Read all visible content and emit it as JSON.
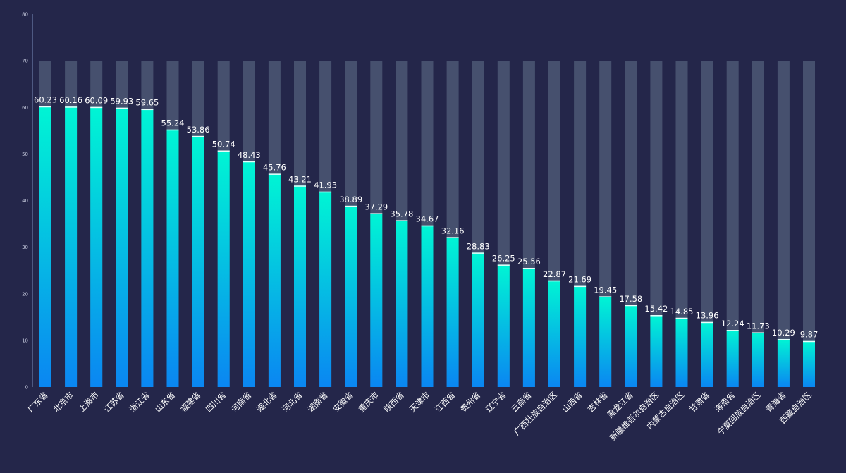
{
  "chart_data": {
    "type": "bar",
    "title": "",
    "xlabel": "",
    "ylabel": "",
    "ylim": [
      0,
      80
    ],
    "yticks": [
      0,
      10,
      20,
      30,
      40,
      50,
      60,
      70,
      80
    ],
    "background_max": 70,
    "grid": false,
    "categories": [
      "广东省",
      "北京市",
      "上海市",
      "江苏省",
      "浙江省",
      "山东省",
      "福建省",
      "四川省",
      "河南省",
      "湖北省",
      "河北省",
      "湖南省",
      "安徽省",
      "重庆市",
      "陕西省",
      "天津市",
      "江西省",
      "贵州省",
      "辽宁省",
      "云南省",
      "广西壮族自治区",
      "山西省",
      "吉林省",
      "黑龙江省",
      "新疆维吾尔自治区",
      "内蒙古自治区",
      "甘肃省",
      "海南省",
      "宁夏回族自治区",
      "青海省",
      "西藏自治区"
    ],
    "series": [
      {
        "values": [
          60.23,
          60.16,
          60.09,
          59.93,
          59.65,
          55.24,
          53.86,
          50.74,
          48.43,
          45.76,
          43.21,
          41.93,
          38.89,
          37.29,
          35.78,
          34.67,
          32.16,
          28.83,
          26.25,
          25.56,
          22.87,
          21.69,
          19.45,
          17.58,
          15.42,
          14.85,
          13.96,
          12.24,
          11.73,
          10.29,
          9.87
        ],
        "value_labels": [
          "60.23",
          "60.16",
          "60.09",
          "59.93",
          "59.65",
          "55.24",
          "53.86",
          "50.74",
          "48.43",
          "45.76",
          "43.21",
          "41.93",
          "38.89",
          "37.29",
          "35.78",
          "34.67",
          "32.16",
          "28.83",
          "26.25",
          "25.56",
          "22.87",
          "21.69",
          "19.45",
          "17.58",
          "15.42",
          "14.85",
          "13.96",
          "12.24",
          "11.73",
          "10.29",
          "9.87"
        ]
      }
    ],
    "colors": {
      "background": "#24264a",
      "track": "#46506e",
      "bar_top": "#00f5d4",
      "bar_bottom": "#0a86f2",
      "axis_line": "#5d6a94",
      "tick_text": "#c5c9dd",
      "label_text": "#ffffff"
    }
  }
}
